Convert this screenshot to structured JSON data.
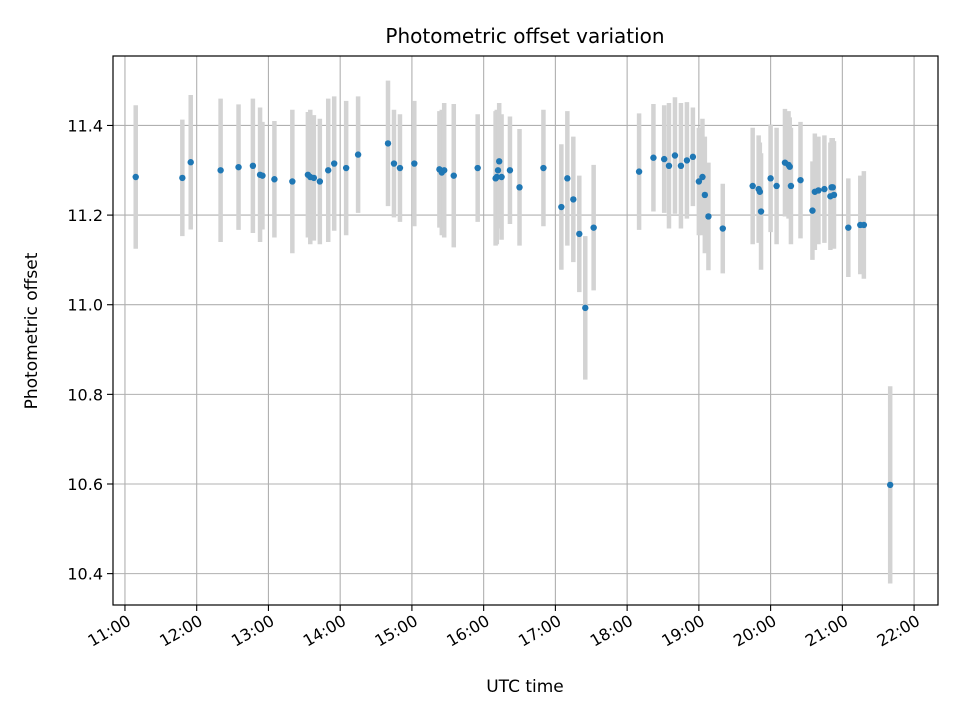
{
  "chart_data": {
    "type": "scatter",
    "title": "Photometric offset variation",
    "xlabel": "UTC time",
    "ylabel": "Photometric offset",
    "x_ticks": [
      "11:00",
      "12:00",
      "13:00",
      "14:00",
      "15:00",
      "16:00",
      "17:00",
      "18:00",
      "19:00",
      "20:00",
      "21:00",
      "22:00"
    ],
    "y_ticks": [
      "10.4",
      "10.6",
      "10.8",
      "11.0",
      "11.2",
      "11.4"
    ],
    "y_tick_values": [
      10.4,
      10.6,
      10.8,
      11.0,
      11.2,
      11.4
    ],
    "xlim": [
      "10:50",
      "22:20"
    ],
    "ylim": [
      10.33,
      11.555
    ],
    "grid": true,
    "marker_color": "#1f77b4",
    "errorbar_color": "#d3d3d3",
    "series": [
      {
        "x": [
          "11:09",
          "11:48",
          "11:55",
          "12:20",
          "12:35",
          "12:47",
          "12:53",
          "12:55",
          "13:05",
          "13:20",
          "13:33",
          "13:35",
          "13:38",
          "13:43",
          "13:50",
          "13:55",
          "14:05",
          "14:15",
          "14:40",
          "14:45",
          "14:50",
          "15:02",
          "15:23",
          "15:25",
          "15:27",
          "15:35",
          "15:55",
          "16:10",
          "16:11",
          "16:12",
          "16:13",
          "16:15",
          "16:22",
          "16:30",
          "16:50",
          "17:05",
          "17:10",
          "17:15",
          "17:20",
          "17:25",
          "17:32",
          "18:10",
          "18:22",
          "18:31",
          "18:35",
          "18:40",
          "18:45",
          "18:50",
          "18:55",
          "19:00",
          "19:03",
          "19:05",
          "19:08",
          "19:20",
          "19:45",
          "19:50",
          "19:51",
          "19:52",
          "20:00",
          "20:05",
          "20:12",
          "20:15",
          "20:16",
          "20:17",
          "20:25",
          "20:35",
          "20:37",
          "20:40",
          "20:45",
          "20:50",
          "20:51",
          "20:52",
          "20:53",
          "21:05",
          "21:15",
          "21:18",
          "21:40"
        ],
        "y": [
          11.285,
          11.283,
          11.318,
          11.3,
          11.307,
          11.31,
          11.29,
          11.288,
          11.28,
          11.275,
          11.29,
          11.285,
          11.283,
          11.275,
          11.3,
          11.315,
          11.305,
          11.335,
          11.36,
          11.315,
          11.305,
          11.315,
          11.302,
          11.295,
          11.3,
          11.288,
          11.305,
          11.282,
          11.285,
          11.3,
          11.32,
          11.285,
          11.3,
          11.262,
          11.305,
          11.218,
          11.282,
          11.235,
          11.158,
          10.993,
          11.172,
          11.297,
          11.328,
          11.325,
          11.31,
          11.333,
          11.31,
          11.322,
          11.33,
          11.275,
          11.285,
          11.245,
          11.197,
          11.17,
          11.265,
          11.258,
          11.252,
          11.208,
          11.282,
          11.265,
          11.317,
          11.312,
          11.308,
          11.265,
          11.278,
          11.21,
          11.252,
          11.255,
          11.258,
          11.242,
          11.262,
          11.262,
          11.245,
          11.172,
          11.178,
          11.178,
          10.598
        ],
        "yerr": [
          0.16,
          0.13,
          0.15,
          0.16,
          0.14,
          0.15,
          0.15,
          0.12,
          0.13,
          0.16,
          0.14,
          0.15,
          0.14,
          0.14,
          0.16,
          0.15,
          0.15,
          0.13,
          0.14,
          0.12,
          0.12,
          0.14,
          0.13,
          0.14,
          0.15,
          0.16,
          0.12,
          0.15,
          0.15,
          0.13,
          0.13,
          0.14,
          0.12,
          0.13,
          0.13,
          0.14,
          0.15,
          0.14,
          0.13,
          0.16,
          0.14,
          0.13,
          0.12,
          0.12,
          0.14,
          0.13,
          0.14,
          0.13,
          0.11,
          0.12,
          0.13,
          0.13,
          0.12,
          0.1,
          0.13,
          0.12,
          0.11,
          0.13,
          0.12,
          0.13,
          0.12,
          0.12,
          0.11,
          0.13,
          0.13,
          0.11,
          0.13,
          0.12,
          0.12,
          0.12,
          0.11,
          0.11,
          0.12,
          0.11,
          0.11,
          0.12,
          0.22
        ]
      }
    ]
  }
}
